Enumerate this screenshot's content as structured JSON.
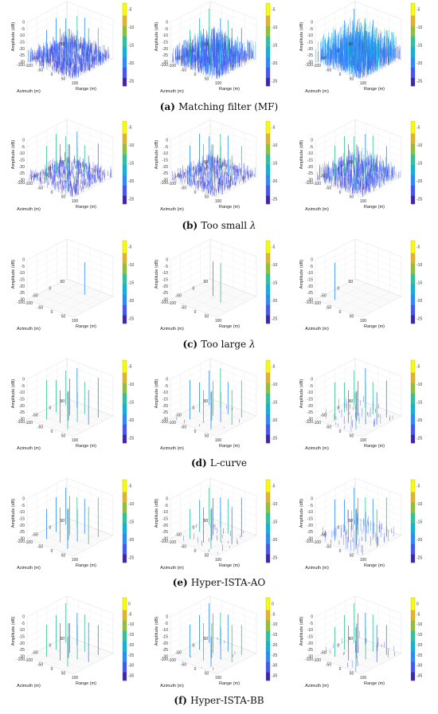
{
  "chart_data": {
    "type": "3d-stem-grid",
    "axes": {
      "xlabel": "Range (m)",
      "ylabel": "Azimuth (m)",
      "zlabel": "Amplitude (dB)",
      "xticks": [
        "-100",
        "-50",
        "0",
        "50",
        "100"
      ],
      "yticks": [
        "-100",
        "-50",
        "0",
        "50"
      ],
      "zticks": [
        "0",
        "-5",
        "-10",
        "-15",
        "-20",
        "-25",
        "-30"
      ],
      "zlim": [
        -30,
        0
      ],
      "colorbar_ticks": [
        "-5",
        "-10",
        "-15",
        "-20",
        "-25"
      ],
      "colorbar_ticks_f": [
        "0",
        "-5",
        "-10",
        "-15",
        "-20",
        "-25",
        "-30",
        "-35"
      ]
    },
    "colormap": [
      "#3e26a8",
      "#4457f3",
      "#2d8af8",
      "#15b1d4",
      "#35c09a",
      "#92bf3e",
      "#e2b52e",
      "#f9fb0e"
    ],
    "rows": [
      {
        "label": "(a)",
        "title": "Matching filter (MF)",
        "panels": [
          {
            "targets": 12,
            "clutter_density": 0.85,
            "clutter_level": -22
          },
          {
            "targets": 12,
            "clutter_density": 0.95,
            "clutter_level": -19
          },
          {
            "targets": 12,
            "clutter_density": 1.0,
            "clutter_level": -14
          }
        ]
      },
      {
        "label": "(b)",
        "title": "Too small ",
        "symbol": "λ",
        "panels": [
          {
            "targets": 12,
            "clutter_density": 0.5,
            "clutter_level": -24
          },
          {
            "targets": 12,
            "clutter_density": 0.55,
            "clutter_level": -24
          },
          {
            "targets": 12,
            "clutter_density": 0.6,
            "clutter_level": -21
          }
        ]
      },
      {
        "label": "(c)",
        "title": "Too large ",
        "symbol": "λ",
        "panels": [
          {
            "targets": 1,
            "clutter_density": 0.0,
            "clutter_level": -30
          },
          {
            "targets": 2,
            "clutter_density": 0.0,
            "clutter_level": -30
          },
          {
            "targets": 1,
            "clutter_density": 0.0,
            "clutter_level": -30
          }
        ]
      },
      {
        "label": "(d)",
        "title": "L-curve",
        "panels": [
          {
            "targets": 12,
            "clutter_density": 0.0,
            "clutter_level": -30
          },
          {
            "targets": 12,
            "clutter_density": 0.01,
            "clutter_level": -27
          },
          {
            "targets": 12,
            "clutter_density": 0.05,
            "clutter_level": -24
          }
        ]
      },
      {
        "label": "(e)",
        "title": "Hyper-ISTA-AO",
        "panels": [
          {
            "targets": 12,
            "clutter_density": 0.0,
            "clutter_level": -30
          },
          {
            "targets": 12,
            "clutter_density": 0.03,
            "clutter_level": -26
          },
          {
            "targets": 12,
            "clutter_density": 0.08,
            "clutter_level": -22
          }
        ]
      },
      {
        "label": "(f)",
        "title": "Hyper-ISTA-BB",
        "panels": [
          {
            "targets": 12,
            "clutter_density": 0.0,
            "clutter_level": -30
          },
          {
            "targets": 12,
            "clutter_density": 0.01,
            "clutter_level": -28
          },
          {
            "targets": 12,
            "clutter_density": 0.03,
            "clutter_level": -25
          }
        ]
      }
    ]
  }
}
